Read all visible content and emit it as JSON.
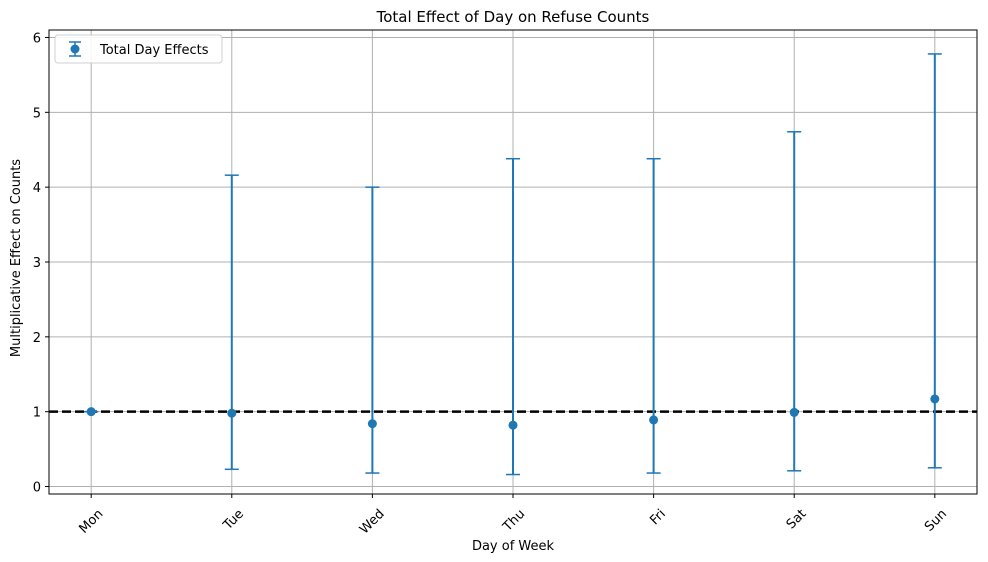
{
  "chart_data": {
    "type": "scatter",
    "title": "Total Effect of Day on Refuse Counts",
    "xlabel": "Day of Week",
    "ylabel": "Multiplicative Effect on Counts",
    "categories": [
      "Mon",
      "Tue",
      "Wed",
      "Thu",
      "Fri",
      "Sat",
      "Sun"
    ],
    "series": [
      {
        "name": "Total Day Effects",
        "values": [
          1.0,
          0.98,
          0.84,
          0.82,
          0.89,
          0.99,
          1.17
        ],
        "lower": [
          1.0,
          0.23,
          0.18,
          0.16,
          0.18,
          0.21,
          0.25
        ],
        "upper": [
          1.0,
          4.16,
          4.0,
          4.38,
          4.38,
          4.74,
          5.78
        ]
      }
    ],
    "reference_line": {
      "y": 1.0,
      "style": "dashed",
      "color": "#000000"
    },
    "ylim": [
      -0.1,
      6.1
    ],
    "yticks": [
      "0",
      "1",
      "2",
      "3",
      "4",
      "5",
      "6"
    ],
    "grid": true,
    "legend": {
      "position": "top-left"
    },
    "colors": {
      "series": "#1f77b4",
      "grid": "#b0b0b0"
    },
    "x_tick_rotation_deg": 45
  }
}
